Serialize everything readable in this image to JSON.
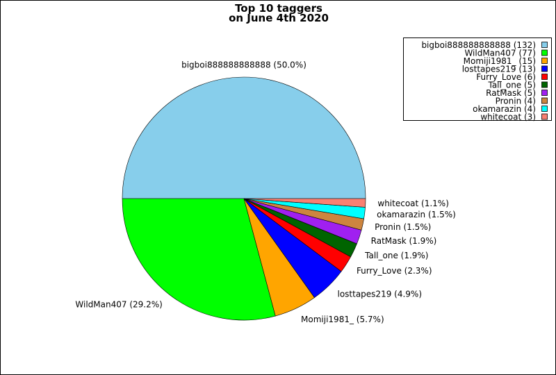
{
  "chart_data": {
    "type": "pie",
    "title": [
      "Top 10 taggers",
      "on June 4th 2020"
    ],
    "categories": [
      "bigboi888888888888",
      "WildMan407",
      "Momiji1981_",
      "losttapes219",
      "Furry_Love",
      "Tall_one",
      "RatMask",
      "Pronin",
      "okamarazin",
      "whitecoat"
    ],
    "values": [
      132,
      77,
      15,
      13,
      6,
      5,
      5,
      4,
      4,
      3
    ],
    "percent_labels": [
      "50.0%",
      "29.2%",
      "5.7%",
      "4.9%",
      "2.3%",
      "1.9%",
      "1.9%",
      "1.5%",
      "1.5%",
      "1.1%"
    ],
    "colors": [
      "#87ceeb",
      "#00ff00",
      "#ffa500",
      "#0000ff",
      "#ff0000",
      "#006400",
      "#a020f0",
      "#cd853f",
      "#00ffff",
      "#fa8072"
    ],
    "start_angle": "3 o'clock",
    "direction": "counterclockwise",
    "legend_placement": "top-right"
  }
}
